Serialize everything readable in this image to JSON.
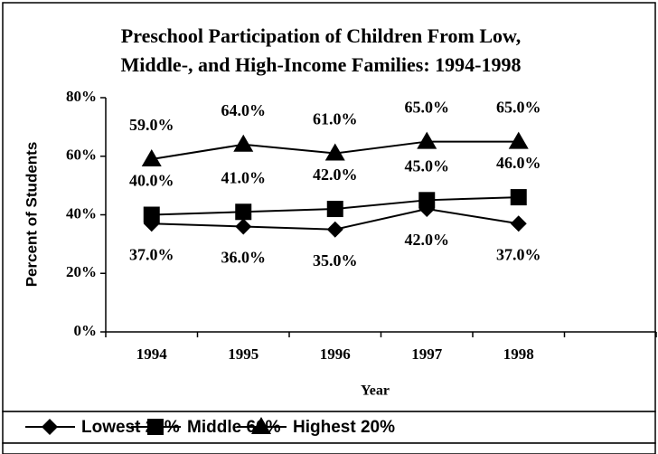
{
  "chart_data": {
    "type": "line",
    "title": "Preschool Participation of Children From Low,",
    "subtitle": "Middle-, and High-Income Families: 1994-1998",
    "xlabel": "Year",
    "ylabel": "Percent of Students",
    "categories": [
      "1994",
      "1995",
      "1996",
      "1997",
      "1998",
      null
    ],
    "ylim": [
      0,
      80
    ],
    "yticks": [
      {
        "value": 0,
        "label": "0%"
      },
      {
        "value": 20,
        "label": "20%"
      },
      {
        "value": 40,
        "label": "40%"
      },
      {
        "value": 60,
        "label": "60%"
      },
      {
        "value": 80,
        "label": "80%"
      }
    ],
    "legend": "bottom",
    "series": [
      {
        "name": "Lowest 20%",
        "color": "#000000",
        "marker": "diamond",
        "values": [
          37,
          36,
          35,
          42,
          37,
          null
        ],
        "value_labels": [
          "37.0%",
          "36.0%",
          "35.0%",
          "42.0%",
          "37.0%",
          null
        ]
      },
      {
        "name": "Middle 60%",
        "color": "#000000",
        "marker": "square",
        "values": [
          40,
          41,
          42,
          45,
          46,
          null
        ],
        "value_labels": [
          "40.0%",
          "41.0%",
          "42.0%",
          "45.0%",
          "46.0%",
          null
        ]
      },
      {
        "name": "Highest 20%",
        "color": "#000000",
        "marker": "triangle",
        "values": [
          59,
          64,
          61,
          65,
          65,
          null
        ],
        "value_labels": [
          "59.0%",
          "64.0%",
          "61.0%",
          "65.0%",
          "65.0%",
          null
        ]
      }
    ]
  }
}
